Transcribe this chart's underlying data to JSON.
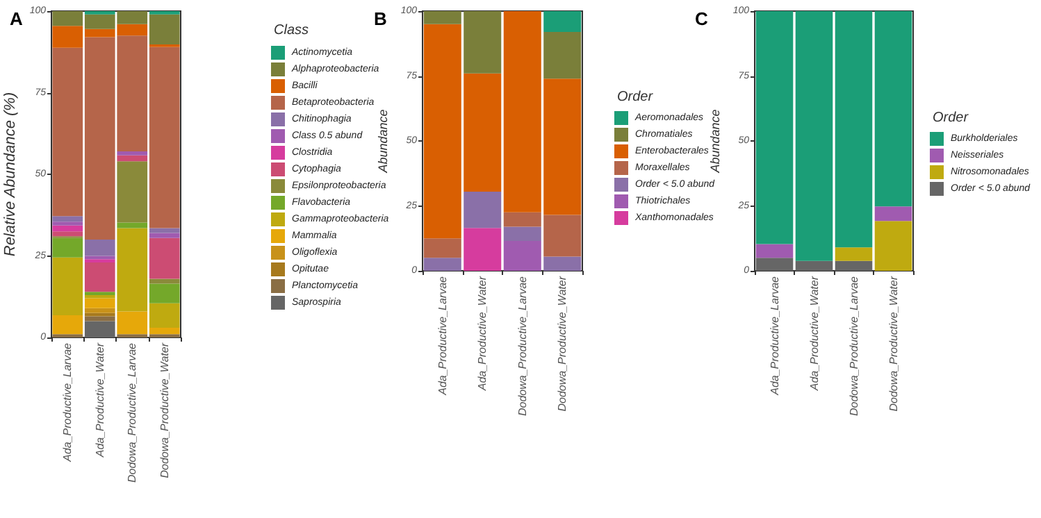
{
  "chart_data": [
    {
      "type": "bar",
      "title": "A",
      "ylabel": "Relative Abundance (%)",
      "legend_title": "Class",
      "stacked": true,
      "legend": "right",
      "grid": false,
      "ylim": [
        0,
        100
      ],
      "yticks": [
        0,
        25,
        50,
        75,
        100
      ],
      "categories": [
        "Ada_Productive_Larvae",
        "Ada_Productive_Water",
        "Dodowa_Productive_Larvae",
        "Dodowa_Productive_Water"
      ],
      "series": [
        {
          "name": "Saprospiria",
          "color": "#666666",
          "values": [
            0,
            5,
            0,
            0
          ]
        },
        {
          "name": "Planctomycetia",
          "color": "#8a6e45",
          "values": [
            1,
            1.5,
            1,
            1
          ]
        },
        {
          "name": "Opitutae",
          "color": "#a77a1e",
          "values": [
            0,
            1,
            0,
            0
          ]
        },
        {
          "name": "Oligoflexia",
          "color": "#c8921a",
          "values": [
            0,
            1.5,
            0,
            0
          ]
        },
        {
          "name": "Mammalia",
          "color": "#e6a80a",
          "values": [
            5.8,
            3,
            7,
            2
          ]
        },
        {
          "name": "Gammaproteobacteria",
          "color": "#bfaa10",
          "values": [
            17.7,
            1,
            25.5,
            7.5
          ]
        },
        {
          "name": "Flavobacteria",
          "color": "#74a82a",
          "values": [
            6,
            1,
            1.7,
            6
          ]
        },
        {
          "name": "Epsilonproteobacteria",
          "color": "#8a8a3a",
          "values": [
            0.5,
            0,
            18.8,
            1.5
          ]
        },
        {
          "name": "Cytophagia",
          "color": "#cc4c73",
          "values": [
            1.5,
            9,
            1.8,
            12.5
          ]
        },
        {
          "name": "Clostridia",
          "color": "#d63c9e",
          "values": [
            1.8,
            1,
            0,
            0
          ]
        },
        {
          "name": "Class 0.5 abund",
          "color": "#a05bb0",
          "values": [
            1.2,
            1,
            1.2,
            1.5
          ]
        },
        {
          "name": "Chitinophagia",
          "color": "#8a70a8",
          "values": [
            1.7,
            5,
            0,
            1.5
          ]
        },
        {
          "name": "Betaproteobacteria",
          "color": "#b5654a",
          "values": [
            51.6,
            62,
            35.5,
            55.5
          ]
        },
        {
          "name": "Bacilli",
          "color": "#d95f02",
          "values": [
            6.7,
            2.5,
            3.5,
            0.8
          ]
        },
        {
          "name": "Alphaproteobacteria",
          "color": "#7a7f3a",
          "values": [
            4.5,
            4.5,
            4,
            9.2
          ]
        },
        {
          "name": "Actinomycetia",
          "color": "#1b9e77",
          "values": [
            0,
            1,
            0,
            1
          ]
        }
      ]
    },
    {
      "type": "bar",
      "title": "B",
      "ylabel": "Abundance",
      "legend_title": "Order",
      "stacked": true,
      "legend": "right",
      "grid": false,
      "ylim": [
        0,
        100
      ],
      "yticks": [
        0,
        25,
        50,
        75,
        100
      ],
      "categories": [
        "Ada_Productive_Larvae",
        "Ada_Productive_Water",
        "Dodowa_Productive_Larvae",
        "Dodowa_Productive_Water"
      ],
      "series": [
        {
          "name": "Xanthomonadales",
          "color": "#d63c9e",
          "values": [
            0,
            16.5,
            0,
            0
          ]
        },
        {
          "name": "Thiotrichales",
          "color": "#a05bb0",
          "values": [
            0,
            0,
            11.5,
            0
          ]
        },
        {
          "name": "Order < 5.0 abund",
          "color": "#8a70a8",
          "values": [
            5,
            14,
            5.5,
            5.5
          ]
        },
        {
          "name": "Moraxellales",
          "color": "#b5654a",
          "values": [
            7.5,
            0,
            5.5,
            16
          ]
        },
        {
          "name": "Enterobacterales",
          "color": "#d95f02",
          "values": [
            82.5,
            45.5,
            77.5,
            52.5
          ]
        },
        {
          "name": "Chromatiales",
          "color": "#7a7f3a",
          "values": [
            5,
            24,
            0,
            18
          ]
        },
        {
          "name": "Aeromonadales",
          "color": "#1b9e77",
          "values": [
            0,
            0,
            0,
            8
          ]
        }
      ]
    },
    {
      "type": "bar",
      "title": "C",
      "ylabel": "Abundance",
      "legend_title": "Order",
      "stacked": true,
      "legend": "right",
      "grid": false,
      "ylim": [
        0,
        100
      ],
      "yticks": [
        0,
        25,
        50,
        75,
        100
      ],
      "categories": [
        "Ada_Productive_Larvae",
        "Ada_Productive_Water",
        "Dodowa_Productive_Larvae",
        "Dodowa_Productive_Water"
      ],
      "series": [
        {
          "name": "Order < 5.0 abund",
          "color": "#666666",
          "values": [
            5,
            3.8,
            3.8,
            0
          ]
        },
        {
          "name": "Nitrosomonadales",
          "color": "#bfaa10",
          "values": [
            0,
            0,
            5.2,
            19.2
          ]
        },
        {
          "name": "Neisseriales",
          "color": "#a05bb0",
          "values": [
            5.3,
            0,
            0,
            5.6
          ]
        },
        {
          "name": "Burkholderiales",
          "color": "#1b9e77",
          "values": [
            89.7,
            96.2,
            91,
            75.2
          ]
        }
      ]
    }
  ]
}
